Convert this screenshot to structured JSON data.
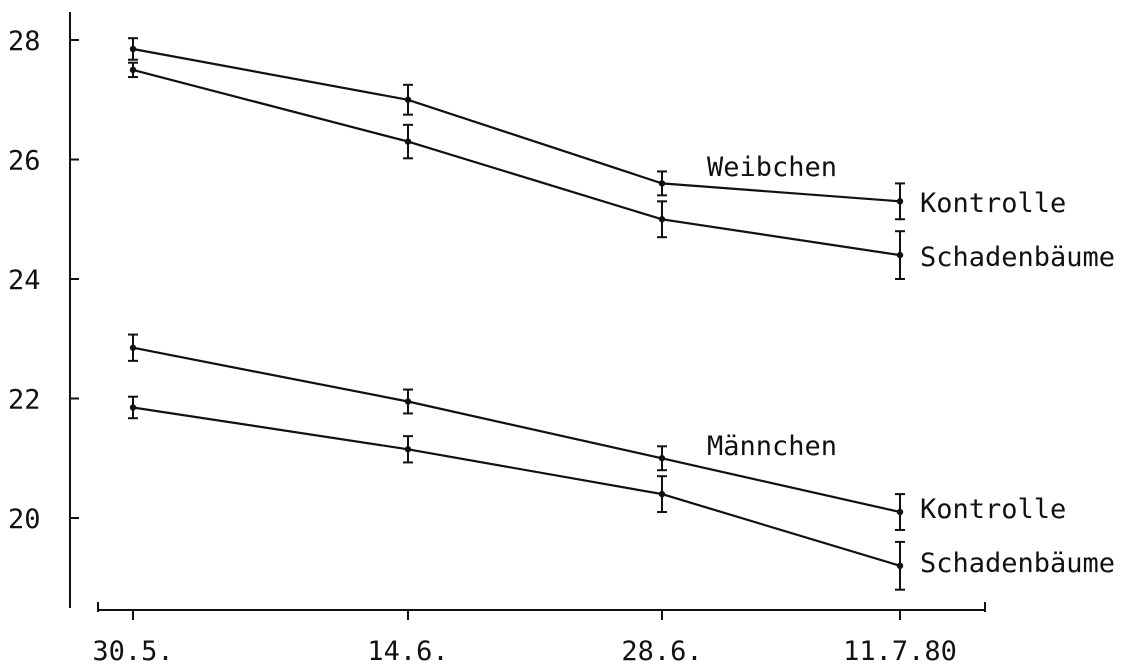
{
  "chart_data": {
    "type": "line",
    "title": "",
    "xlabel": "",
    "ylabel": "",
    "categories": [
      "30.5.",
      "14.6.",
      "28.6.",
      "11.7.80"
    ],
    "y_ticks": [
      "20",
      "22",
      "24",
      "26",
      "28"
    ],
    "ylim": [
      18.4,
      28.5
    ],
    "grid": false,
    "series": [
      {
        "group": "Weibchen",
        "name": "Kontrolle",
        "values": [
          27.85,
          27.0,
          25.6,
          25.3
        ],
        "errors": [
          0.18,
          0.25,
          0.2,
          0.3
        ]
      },
      {
        "group": "Weibchen",
        "name": "Schadenbäume",
        "values": [
          27.5,
          26.3,
          25.0,
          24.4
        ],
        "errors": [
          0.12,
          0.28,
          0.3,
          0.4
        ]
      },
      {
        "group": "Männchen",
        "name": "Kontrolle",
        "values": [
          22.85,
          21.95,
          21.0,
          20.1
        ],
        "errors": [
          0.22,
          0.2,
          0.2,
          0.3
        ]
      },
      {
        "group": "Männchen",
        "name": "Schadenbäume",
        "values": [
          21.85,
          21.15,
          20.4,
          19.2
        ],
        "errors": [
          0.18,
          0.22,
          0.3,
          0.4
        ]
      }
    ],
    "annotations": {
      "group_female": "Weibchen",
      "group_male": "Männchen"
    }
  }
}
